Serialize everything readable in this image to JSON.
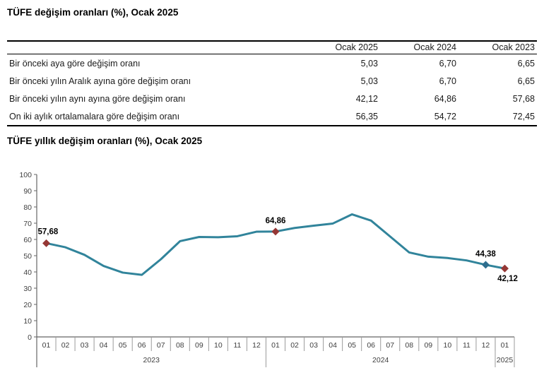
{
  "report": {
    "table_title": "TÜFE değişim oranları (%), Ocak 2025",
    "chart_title": "TÜFE yıllık değişim oranları (%), Ocak 2025"
  },
  "table": {
    "header": [
      "Ocak 2025",
      "Ocak 2024",
      "Ocak 2023"
    ],
    "rows": [
      {
        "label": "Bir önceki aya göre değişim oranı",
        "values": [
          "5,03",
          "6,70",
          "6,65"
        ]
      },
      {
        "label": "Bir önceki yılın Aralık ayına göre değişim oranı",
        "values": [
          "5,03",
          "6,70",
          "6,65"
        ]
      },
      {
        "label": "Bir önceki yılın aynı ayına göre değişim oranı",
        "values": [
          "42,12",
          "64,86",
          "57,68"
        ]
      },
      {
        "label": "On iki aylık ortalamalara göre değişim oranı",
        "values": [
          "56,35",
          "54,72",
          "72,45"
        ]
      }
    ]
  },
  "chart_data": {
    "type": "line",
    "title": "TÜFE yıllık değişim oranları (%), Ocak 2025",
    "xlabel": "",
    "ylabel": "",
    "ylim": [
      0,
      100
    ],
    "ytick_step": 10,
    "grid": false,
    "legend": "none",
    "line_color": "#31849B",
    "axis_color": "#666666",
    "separator_color": "#9b9b9b",
    "categories": [
      "01",
      "02",
      "03",
      "04",
      "05",
      "06",
      "07",
      "08",
      "09",
      "10",
      "11",
      "12",
      "01",
      "02",
      "03",
      "04",
      "05",
      "06",
      "07",
      "08",
      "09",
      "10",
      "11",
      "12",
      "01"
    ],
    "year_groups": [
      {
        "label": "2023",
        "span": 12
      },
      {
        "label": "2024",
        "span": 12
      },
      {
        "label": "2025",
        "span": 1
      }
    ],
    "values": [
      57.68,
      55.18,
      50.51,
      43.68,
      39.59,
      38.21,
      47.83,
      58.94,
      61.53,
      61.36,
      61.98,
      64.77,
      64.86,
      67.07,
      68.5,
      69.8,
      75.45,
      71.6,
      61.78,
      51.97,
      49.38,
      48.58,
      47.09,
      44.38,
      42.12
    ],
    "annotations": [
      {
        "index": 0,
        "label": "57,68",
        "marker_color": "#953735",
        "label_position": "above-left"
      },
      {
        "index": 12,
        "label": "64,86",
        "marker_color": "#953735",
        "label_position": "above"
      },
      {
        "index": 23,
        "label": "44,38",
        "marker_color": "#2E6E8E",
        "label_position": "above"
      },
      {
        "index": 24,
        "label": "42,12",
        "marker_color": "#953735",
        "label_position": "below-right"
      }
    ]
  }
}
